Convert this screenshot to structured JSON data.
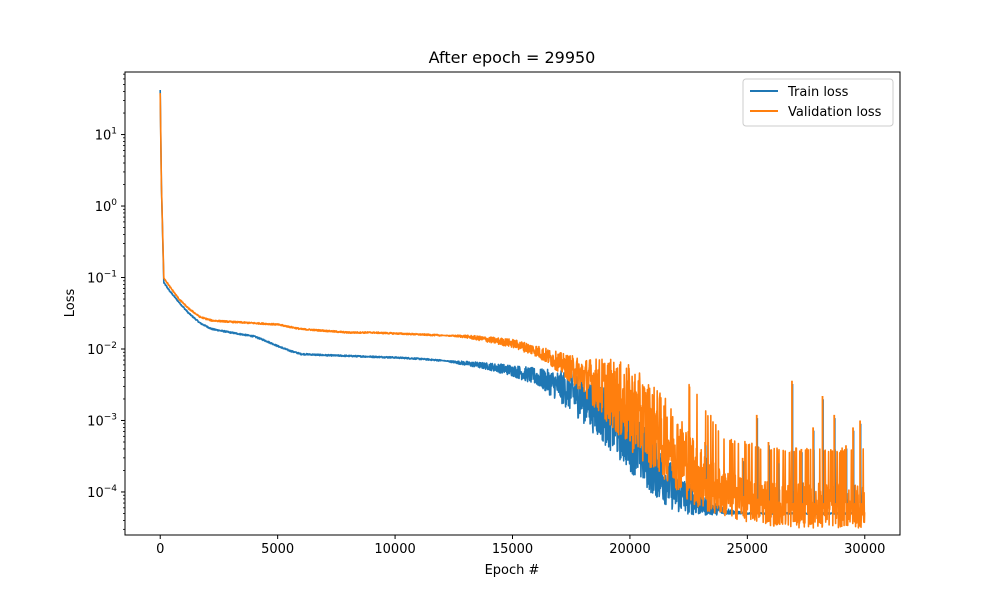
{
  "chart_data": {
    "type": "line",
    "title": "After epoch = 29950",
    "xlabel": "Epoch #",
    "ylabel": "Loss",
    "xlim": [
      -1500,
      31500
    ],
    "ylim": [
      2.5e-05,
      75
    ],
    "yscale": "log",
    "grid": false,
    "legend_position": "top-right",
    "x_ticks": [
      0,
      5000,
      10000,
      15000,
      20000,
      25000,
      30000
    ],
    "x_tick_labels": [
      "0",
      "5000",
      "10000",
      "15000",
      "20000",
      "25000",
      "30000"
    ],
    "y_ticks": [
      0.0001,
      0.001,
      0.01,
      0.1,
      1,
      10
    ],
    "y_tick_labels": [
      {
        "base": "10",
        "exp": "−4"
      },
      {
        "base": "10",
        "exp": "−3"
      },
      {
        "base": "10",
        "exp": "−2"
      },
      {
        "base": "10",
        "exp": "−1"
      },
      {
        "base": "10",
        "exp": "0"
      },
      {
        "base": "10",
        "exp": "1"
      }
    ],
    "series": [
      {
        "name": "Train loss",
        "color": "#1f77b4",
        "x": [
          0,
          50,
          150,
          400,
          800,
          1200,
          1700,
          2200,
          3000,
          4000,
          4500,
          5000,
          5500,
          6000,
          7000,
          8000,
          9000,
          10000,
          11000,
          12000,
          13000,
          14000,
          15000,
          16000,
          17000,
          18000,
          19000,
          20000,
          21000,
          22000,
          23000,
          24000,
          25000,
          26000,
          27000,
          28000,
          29000,
          30000
        ],
        "y": [
          42,
          2,
          0.085,
          0.065,
          0.045,
          0.032,
          0.023,
          0.019,
          0.017,
          0.015,
          0.013,
          0.011,
          0.0095,
          0.0085,
          0.0082,
          0.008,
          0.0078,
          0.0076,
          0.0073,
          0.0069,
          0.0063,
          0.0057,
          0.005,
          0.0041,
          0.003,
          0.0021,
          0.0012,
          0.00055,
          0.00022,
          0.0001,
          6.6e-05,
          5.4e-05,
          5e-05,
          5e-05,
          5e-05,
          5e-05,
          5e-05,
          5e-05
        ],
        "noise_band": [
          0,
          0,
          0,
          0,
          0,
          0,
          0,
          0,
          0,
          0,
          0,
          0,
          0,
          0,
          0,
          0,
          0,
          0,
          0,
          0,
          0.03,
          0.05,
          0.08,
          0.12,
          0.22,
          0.35,
          0.45,
          0.45,
          0.4,
          0.3,
          0.15,
          0.05,
          0,
          0,
          0,
          0,
          0,
          0
        ]
      },
      {
        "name": "Validation loss",
        "color": "#ff7f0e",
        "x": [
          0,
          50,
          150,
          400,
          800,
          1200,
          1700,
          2200,
          3000,
          4000,
          5000,
          6000,
          7000,
          8000,
          9000,
          10000,
          11000,
          12000,
          13000,
          14000,
          15000,
          16000,
          17000,
          18000,
          19000,
          20000,
          21000,
          22000,
          23000,
          24000,
          25000,
          26000,
          27000,
          28000,
          29000,
          30000
        ],
        "y": [
          38,
          2,
          0.1,
          0.075,
          0.05,
          0.037,
          0.028,
          0.025,
          0.024,
          0.023,
          0.022,
          0.019,
          0.018,
          0.017,
          0.017,
          0.0165,
          0.016,
          0.0155,
          0.015,
          0.0135,
          0.012,
          0.0095,
          0.0065,
          0.0042,
          0.0027,
          0.0015,
          0.0008,
          0.00038,
          0.00017,
          0.0001,
          8.5e-05,
          7.5e-05,
          7e-05,
          7e-05,
          7e-05,
          7e-05
        ],
        "noise_band": [
          0,
          0,
          0,
          0,
          0,
          0,
          0,
          0,
          0,
          0,
          0,
          0,
          0,
          0,
          0,
          0,
          0,
          0,
          0.02,
          0.04,
          0.06,
          0.08,
          0.14,
          0.25,
          0.45,
          0.6,
          0.6,
          0.55,
          0.5,
          0.35,
          0.35,
          0.35,
          0.35,
          0.35,
          0.35,
          0.35
        ]
      }
    ],
    "spikes": [
      {
        "x": 23200,
        "y": 0.0005
      },
      {
        "x": 24800,
        "y": 0.0003
      },
      {
        "x": 25400,
        "y": 0.0012
      },
      {
        "x": 25900,
        "y": 0.0005
      },
      {
        "x": 26300,
        "y": 0.00028
      },
      {
        "x": 26900,
        "y": 0.0036
      },
      {
        "x": 27300,
        "y": 0.0004
      },
      {
        "x": 27800,
        "y": 0.0008
      },
      {
        "x": 28200,
        "y": 0.0022
      },
      {
        "x": 28700,
        "y": 0.0012
      },
      {
        "x": 29200,
        "y": 0.00045
      },
      {
        "x": 29500,
        "y": 0.0008
      },
      {
        "x": 29800,
        "y": 0.001
      }
    ]
  }
}
